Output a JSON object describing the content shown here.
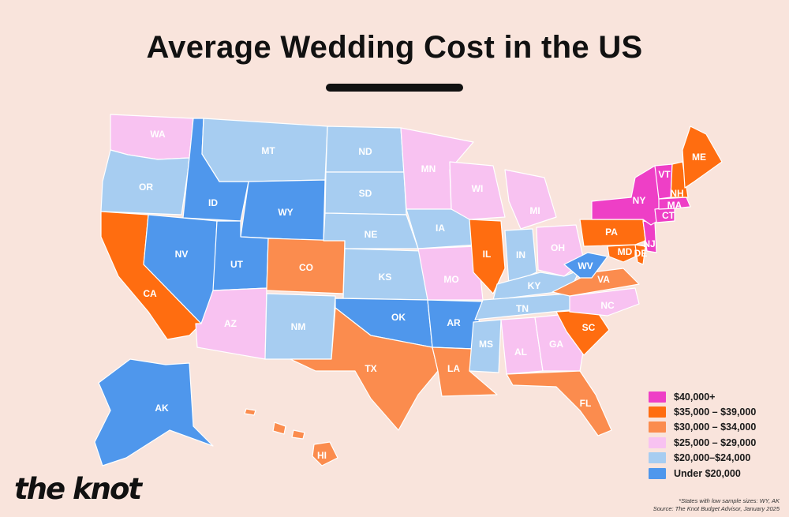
{
  "title": "Average Wedding Cost in the US",
  "colors": {
    "40k_plus": "#ee3fc6",
    "35k_39k": "#ff6d10",
    "30k_34k": "#fb8c4e",
    "25k_29k": "#f8c2f1",
    "20k_24k": "#a7cdf1",
    "under_20k": "#4f97ec",
    "background": "#f9e4dc"
  },
  "legend": [
    {
      "label": "$40,000+",
      "tier": "40k_plus"
    },
    {
      "label": "$35,000 – $39,000",
      "tier": "35k_39k"
    },
    {
      "label": "$30,000 – $34,000",
      "tier": "30k_34k"
    },
    {
      "label": "$25,000 – $29,000",
      "tier": "25k_29k"
    },
    {
      "label": "$20,000–$24,000",
      "tier": "20k_24k"
    },
    {
      "label": "Under $20,000",
      "tier": "under_20k"
    }
  ],
  "states": [
    {
      "abbr": "WA",
      "tier": "25k_29k"
    },
    {
      "abbr": "OR",
      "tier": "20k_24k"
    },
    {
      "abbr": "CA",
      "tier": "35k_39k"
    },
    {
      "abbr": "ID",
      "tier": "under_20k"
    },
    {
      "abbr": "NV",
      "tier": "under_20k"
    },
    {
      "abbr": "MT",
      "tier": "20k_24k"
    },
    {
      "abbr": "WY",
      "tier": "under_20k"
    },
    {
      "abbr": "UT",
      "tier": "under_20k"
    },
    {
      "abbr": "AZ",
      "tier": "25k_29k"
    },
    {
      "abbr": "CO",
      "tier": "30k_34k"
    },
    {
      "abbr": "NM",
      "tier": "20k_24k"
    },
    {
      "abbr": "ND",
      "tier": "20k_24k"
    },
    {
      "abbr": "SD",
      "tier": "20k_24k"
    },
    {
      "abbr": "NE",
      "tier": "20k_24k"
    },
    {
      "abbr": "KS",
      "tier": "20k_24k"
    },
    {
      "abbr": "OK",
      "tier": "under_20k"
    },
    {
      "abbr": "TX",
      "tier": "30k_34k"
    },
    {
      "abbr": "MN",
      "tier": "25k_29k"
    },
    {
      "abbr": "IA",
      "tier": "20k_24k"
    },
    {
      "abbr": "MO",
      "tier": "25k_29k"
    },
    {
      "abbr": "AR",
      "tier": "under_20k"
    },
    {
      "abbr": "LA",
      "tier": "30k_34k"
    },
    {
      "abbr": "WI",
      "tier": "25k_29k"
    },
    {
      "abbr": "IL",
      "tier": "35k_39k"
    },
    {
      "abbr": "MI",
      "tier": "25k_29k"
    },
    {
      "abbr": "IN",
      "tier": "20k_24k"
    },
    {
      "abbr": "OH",
      "tier": "25k_29k"
    },
    {
      "abbr": "KY",
      "tier": "20k_24k"
    },
    {
      "abbr": "TN",
      "tier": "20k_24k"
    },
    {
      "abbr": "MS",
      "tier": "20k_24k"
    },
    {
      "abbr": "AL",
      "tier": "25k_29k"
    },
    {
      "abbr": "GA",
      "tier": "25k_29k"
    },
    {
      "abbr": "FL",
      "tier": "30k_34k"
    },
    {
      "abbr": "SC",
      "tier": "35k_39k"
    },
    {
      "abbr": "NC",
      "tier": "25k_29k"
    },
    {
      "abbr": "VA",
      "tier": "30k_34k"
    },
    {
      "abbr": "WV",
      "tier": "under_20k"
    },
    {
      "abbr": "MD",
      "tier": "35k_39k"
    },
    {
      "abbr": "DE",
      "tier": "35k_39k"
    },
    {
      "abbr": "PA",
      "tier": "35k_39k"
    },
    {
      "abbr": "NJ",
      "tier": "40k_plus"
    },
    {
      "abbr": "NY",
      "tier": "40k_plus"
    },
    {
      "abbr": "CT",
      "tier": "40k_plus"
    },
    {
      "abbr": "MA",
      "tier": "40k_plus"
    },
    {
      "abbr": "VT",
      "tier": "40k_plus"
    },
    {
      "abbr": "NH",
      "tier": "35k_39k"
    },
    {
      "abbr": "ME",
      "tier": "35k_39k"
    },
    {
      "abbr": "AK",
      "tier": "under_20k"
    },
    {
      "abbr": "HI",
      "tier": "30k_34k"
    }
  ],
  "logo": "the knot",
  "footnote_line1": "*States with low sample sizes: WY, AK",
  "footnote_line2": "Source: The Knot Budget Advisor, January 2025"
}
